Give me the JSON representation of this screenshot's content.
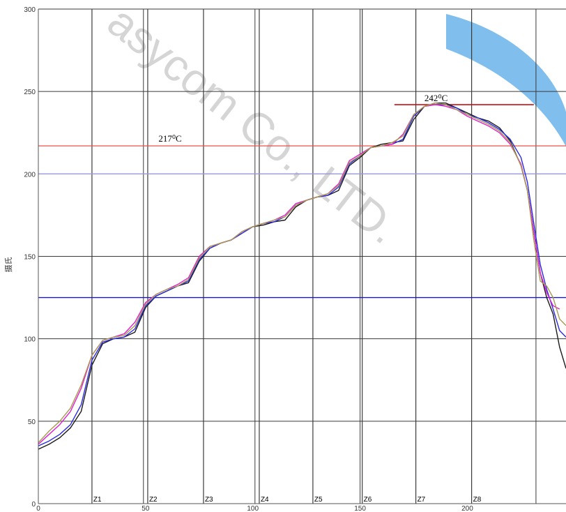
{
  "chart_data": {
    "type": "line",
    "ylabel": "摄氏",
    "xlim": [
      0,
      246
    ],
    "ylim": [
      0,
      300
    ],
    "x_ticks": [
      0,
      50,
      100,
      150,
      200
    ],
    "y_ticks": [
      0,
      50,
      100,
      150,
      200,
      250,
      300
    ],
    "grid": true,
    "watermark": "asycom Co., LTD.",
    "zones": [
      {
        "label": "Z1",
        "x": 25
      },
      {
        "label": "Z2",
        "x": 51
      },
      {
        "label": "Z3",
        "x": 77
      },
      {
        "label": "Z4",
        "x": 103
      },
      {
        "label": "Z5",
        "x": 128
      },
      {
        "label": "Z6",
        "x": 151
      },
      {
        "label": "Z7",
        "x": 176
      },
      {
        "label": "Z8",
        "x": 202
      }
    ],
    "thin_gridlines_x": [
      49,
      101,
      150,
      232
    ],
    "reference_lines": [
      {
        "y": 217,
        "color": "#e8504a",
        "label": "217⁰C",
        "label_x": 56
      },
      {
        "y": 200,
        "color": "#9a9adf",
        "label": ""
      },
      {
        "y": 125,
        "color": "#1a1ab0",
        "label": ""
      }
    ],
    "peak_marker": {
      "y": 242,
      "x_start": 166,
      "x_end": 231,
      "color": "#c81010",
      "label": "242⁰C",
      "label_x": 180
    },
    "series": [
      {
        "color": "#1a1a1a",
        "x": [
          0,
          5,
          10,
          15,
          20,
          25,
          30,
          35,
          40,
          45,
          50,
          55,
          60,
          65,
          70,
          75,
          80,
          85,
          90,
          95,
          100,
          105,
          110,
          115,
          120,
          125,
          130,
          135,
          140,
          145,
          150,
          155,
          160,
          165,
          170,
          175,
          180,
          185,
          190,
          195,
          200,
          205,
          210,
          215,
          220,
          225,
          228,
          231,
          234,
          237,
          240,
          243,
          246
        ],
        "y": [
          33,
          36,
          40,
          46,
          56,
          84,
          97,
          100,
          101,
          104,
          119,
          126,
          129,
          132,
          134,
          147,
          155,
          158,
          160,
          165,
          168,
          169,
          171,
          172,
          180,
          184,
          186,
          187,
          190,
          205,
          210,
          216,
          218,
          219,
          220,
          233,
          241,
          243,
          243,
          240,
          237,
          234,
          232,
          228,
          220,
          205,
          190,
          165,
          140,
          125,
          115,
          95,
          82
        ]
      },
      {
        "color": "#2a2ae0",
        "x": [
          0,
          5,
          10,
          15,
          20,
          25,
          30,
          35,
          40,
          45,
          50,
          55,
          60,
          65,
          70,
          75,
          80,
          85,
          90,
          95,
          100,
          105,
          110,
          115,
          120,
          125,
          130,
          135,
          140,
          145,
          150,
          155,
          160,
          165,
          170,
          175,
          180,
          185,
          190,
          195,
          200,
          205,
          210,
          215,
          220,
          225,
          228,
          231,
          234,
          237,
          240,
          243,
          246
        ],
        "y": [
          35,
          38,
          42,
          48,
          60,
          87,
          98,
          100,
          101,
          106,
          120,
          126,
          129,
          132,
          135,
          148,
          155,
          158,
          160,
          164,
          168,
          170,
          171,
          174,
          181,
          184,
          186,
          187,
          192,
          206,
          211,
          216,
          217,
          218,
          221,
          235,
          241,
          242,
          242,
          240,
          236,
          234,
          231,
          227,
          221,
          210,
          195,
          170,
          145,
          130,
          118,
          105,
          101
        ]
      },
      {
        "color": "#e020d0",
        "x": [
          0,
          5,
          10,
          15,
          20,
          25,
          30,
          35,
          40,
          45,
          50,
          55,
          60,
          65,
          70,
          75,
          80,
          85,
          90,
          95,
          100,
          105,
          110,
          115,
          120,
          125,
          130,
          135,
          140,
          145,
          150,
          155,
          160,
          165,
          170,
          175,
          180,
          185,
          190,
          195,
          200,
          205,
          210,
          215,
          220,
          225,
          228,
          231,
          234,
          237,
          240,
          243
        ],
        "y": [
          36,
          42,
          48,
          56,
          70,
          90,
          99,
          101,
          103,
          110,
          122,
          127,
          130,
          133,
          137,
          150,
          156,
          158,
          160,
          165,
          168,
          170,
          172,
          175,
          182,
          184,
          186,
          188,
          194,
          208,
          212,
          216,
          217,
          218,
          224,
          236,
          241,
          242,
          241,
          239,
          235,
          232,
          229,
          225,
          218,
          206,
          190,
          165,
          140,
          128,
          120,
          118
        ]
      },
      {
        "color": "#a89a50",
        "x": [
          0,
          5,
          10,
          15,
          20,
          25,
          30,
          35,
          40,
          45,
          50,
          55,
          60,
          65,
          70,
          75,
          80,
          85,
          90,
          95,
          100,
          105,
          110,
          115,
          120,
          125,
          130,
          135,
          140,
          145,
          150,
          155,
          160,
          165,
          170,
          175,
          180,
          185,
          190,
          195,
          200,
          205,
          210,
          215,
          220,
          225,
          228,
          231,
          234,
          237,
          240,
          243,
          246
        ],
        "y": [
          37,
          44,
          50,
          58,
          72,
          90,
          99,
          101,
          102,
          108,
          121,
          127,
          130,
          132,
          136,
          149,
          156,
          158,
          160,
          165,
          168,
          170,
          172,
          174,
          181,
          184,
          186,
          188,
          193,
          207,
          211,
          216,
          217,
          219,
          223,
          236,
          241,
          243,
          242,
          239,
          236,
          233,
          230,
          226,
          219,
          205,
          190,
          160,
          135,
          132,
          125,
          112,
          108
        ]
      }
    ]
  }
}
